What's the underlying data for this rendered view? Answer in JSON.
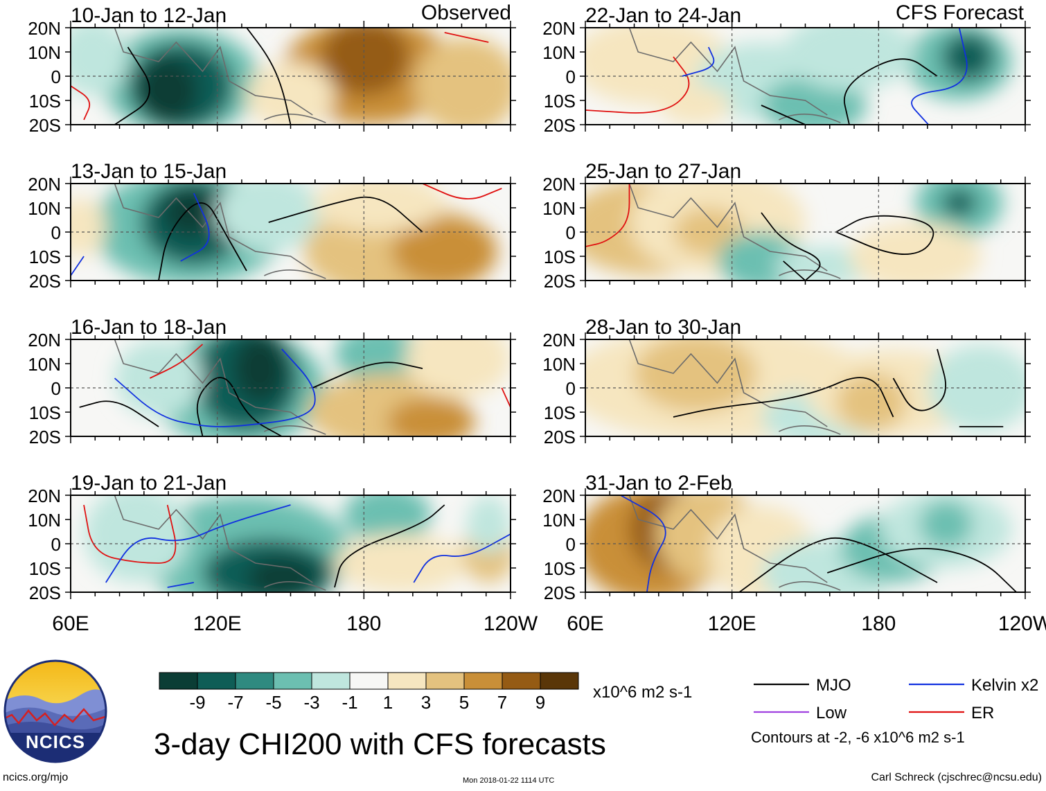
{
  "header": {
    "left_title": "Observed",
    "right_title": "CFS Forecast"
  },
  "panels": [
    {
      "label": "10-Jan to 12-Jan",
      "column": "observed"
    },
    {
      "label": "13-Jan to 15-Jan",
      "column": "observed"
    },
    {
      "label": "16-Jan to 18-Jan",
      "column": "observed"
    },
    {
      "label": "19-Jan to 21-Jan",
      "column": "observed"
    },
    {
      "label": "22-Jan to 24-Jan",
      "column": "forecast"
    },
    {
      "label": "25-Jan to 27-Jan",
      "column": "forecast"
    },
    {
      "label": "28-Jan to 30-Jan",
      "column": "forecast"
    },
    {
      "label": "31-Jan to 2-Feb",
      "column": "forecast"
    }
  ],
  "axes": {
    "lat_labels": [
      "20N",
      "10N",
      "0",
      "10S",
      "20S"
    ],
    "lon_labels": [
      "60E",
      "120E",
      "180",
      "120W"
    ],
    "lat_range": [
      -20,
      20
    ],
    "lon_range": [
      60,
      240
    ]
  },
  "colorbar": {
    "colors": [
      "#0b3d35",
      "#0f5d56",
      "#2f8a80",
      "#6cbfb1",
      "#bfe6de",
      "#f7f7f5",
      "#f6e6c0",
      "#e4c27f",
      "#c98f38",
      "#955b14",
      "#5a3608"
    ],
    "tick_labels": [
      "-9",
      "-7",
      "-5",
      "-3",
      "-1",
      "1",
      "3",
      "5",
      "7",
      "9"
    ],
    "units": "x10^6 m2 s-1"
  },
  "legend": {
    "items": [
      {
        "label": "MJO",
        "color": "#000000"
      },
      {
        "label": "Kelvin x2",
        "color": "#1030e0"
      },
      {
        "label": "Low",
        "color": "#a040e0"
      },
      {
        "label": "ER",
        "color": "#e01010"
      }
    ],
    "contour_note": "Contours at -2, -6 x10^6 m2 s-1"
  },
  "logo": {
    "text": "NCICS"
  },
  "footer": {
    "main_title": "3-day CHI200 with CFS forecasts",
    "site": "ncics.org/mjo",
    "timestamp": "Mon 2018-01-22 1114 UTC",
    "credit": "Carl Schreck (cjschrec@ncsu.edu)"
  }
}
